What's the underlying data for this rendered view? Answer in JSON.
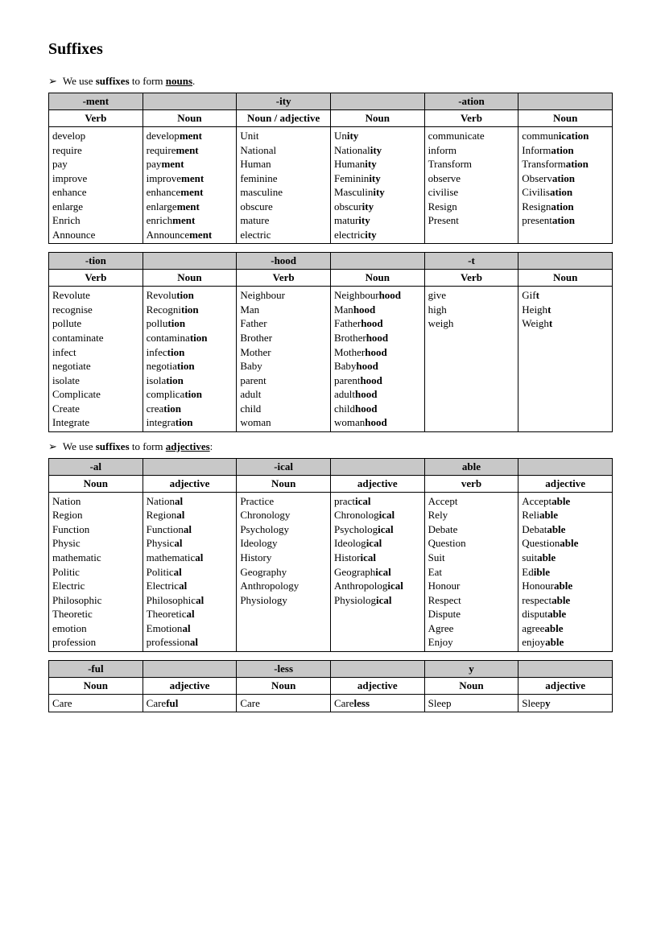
{
  "title": "Suffixes",
  "intro1_pre": "We use ",
  "intro1_b1": "suffixes",
  "intro1_mid": " to form ",
  "intro1_bu": "nouns",
  "intro1_post": ".",
  "intro2_pre": "We use ",
  "intro2_b1": "suffixes",
  "intro2_mid": " to form ",
  "intro2_bu": "adjectives",
  "intro2_post": ":",
  "table1": {
    "suffixes": [
      "-ment",
      "",
      "-ity",
      "",
      "-ation",
      ""
    ],
    "headers": [
      "Verb",
      "Noun",
      "Noun / adjective",
      "Noun",
      "Verb",
      "Noun"
    ],
    "cols": [
      [
        "develop",
        "require",
        "pay",
        "improve",
        "enhance",
        "enlarge",
        "Enrich",
        "Announce"
      ],
      [
        [
          "develop",
          "ment"
        ],
        [
          "require",
          "ment"
        ],
        [
          "pay",
          "ment"
        ],
        [
          "improve",
          "ment"
        ],
        [
          "enhance",
          "ment"
        ],
        [
          "enlarge",
          "ment"
        ],
        [
          "enrich",
          "ment"
        ],
        [
          "Announce",
          "ment"
        ]
      ],
      [
        "Unit",
        "National",
        "Human",
        "feminine",
        "masculine",
        "obscure",
        "mature",
        "electric"
      ],
      [
        [
          "Un",
          "ity"
        ],
        [
          "National",
          "ity"
        ],
        [
          "Human",
          "ity"
        ],
        [
          "Feminin",
          "ity"
        ],
        [
          "Masculin",
          "ity"
        ],
        [
          "obscur",
          "ity"
        ],
        [
          "matur",
          "ity"
        ],
        [
          "electric",
          "ity"
        ]
      ],
      [
        "communicate",
        "inform",
        "Transform",
        "observe",
        "civilise",
        "Resign",
        "Present"
      ],
      [
        [
          "commun",
          "ication"
        ],
        [
          "Inform",
          "ation"
        ],
        [
          "Transform",
          "ation"
        ],
        [
          "Observ",
          "ation"
        ],
        [
          "Civilis",
          "ation"
        ],
        [
          "Resign",
          "ation"
        ],
        [
          "present",
          "ation"
        ]
      ]
    ]
  },
  "table2": {
    "suffixes": [
      "-tion",
      "",
      "-hood",
      "",
      "-t",
      ""
    ],
    "headers": [
      "Verb",
      "Noun",
      "Verb",
      "Noun",
      "Verb",
      "Noun"
    ],
    "cols": [
      [
        "Revolute",
        "recognise",
        "pollute",
        "contaminate",
        "infect",
        "negotiate",
        "isolate",
        "Complicate",
        "Create",
        "Integrate"
      ],
      [
        [
          "Revolu",
          "tion"
        ],
        [
          "Recogni",
          "tion"
        ],
        [
          "pollu",
          "tion"
        ],
        [
          "contamina",
          "tion"
        ],
        [
          "infec",
          "tion"
        ],
        [
          "negotia",
          "tion"
        ],
        [
          "isola",
          "tion"
        ],
        [
          "complica",
          "tion"
        ],
        [
          "crea",
          "tion"
        ],
        [
          "integra",
          "tion"
        ]
      ],
      [
        "Neighbour",
        "Man",
        "Father",
        "Brother",
        "Mother",
        "Baby",
        "parent",
        "adult",
        "child",
        "woman"
      ],
      [
        [
          "Neighbour",
          "hood"
        ],
        [
          "Man",
          "hood"
        ],
        [
          "Father",
          "hood"
        ],
        [
          "Brother",
          "hood"
        ],
        [
          "Mother",
          "hood"
        ],
        [
          "Baby",
          "hood"
        ],
        [
          "parent",
          "hood"
        ],
        [
          "adult",
          "hood"
        ],
        [
          "child",
          "hood"
        ],
        [
          "woman",
          "hood"
        ]
      ],
      [
        "give",
        "high",
        "weigh"
      ],
      [
        [
          "Gif",
          "t"
        ],
        [
          "Heigh",
          "t"
        ],
        [
          "Weigh",
          "t"
        ]
      ]
    ]
  },
  "table3": {
    "suffixes": [
      "-al",
      "",
      "-ical",
      "",
      "able",
      ""
    ],
    "headers": [
      "Noun",
      "adjective",
      "Noun",
      "adjective",
      "verb",
      "adjective"
    ],
    "cols": [
      [
        "Nation",
        "Region",
        "Function",
        "Physic",
        "mathematic",
        "Politic",
        "Electric",
        "Philosophic",
        "Theoretic",
        "emotion",
        "profession"
      ],
      [
        [
          "Nation",
          "al"
        ],
        [
          "Region",
          "al"
        ],
        [
          "Function",
          "al"
        ],
        [
          "Physic",
          "al"
        ],
        [
          "mathematic",
          "al"
        ],
        [
          "Politic",
          "al"
        ],
        [
          "Electric",
          "al"
        ],
        [
          "Philosophic",
          "al"
        ],
        [
          "Theoretic",
          "al"
        ],
        [
          "Emotion",
          "al"
        ],
        [
          "profession",
          "al"
        ]
      ],
      [
        "Practice",
        "Chronology",
        "Psychology",
        "Ideology",
        "History",
        "Geography",
        "Anthropology",
        "Physiology"
      ],
      [
        [
          " pract",
          "ical"
        ],
        [
          "Chronolog",
          "ical"
        ],
        [
          "Psycholog",
          "ical"
        ],
        [
          "Ideolog",
          "ical"
        ],
        [
          "Histor",
          "ical"
        ],
        [
          "Geograph",
          "ical"
        ],
        [
          "Anthropolog",
          "ical"
        ],
        [
          "Physiolog",
          "ical"
        ]
      ],
      [
        "Accept",
        "Rely",
        "Debate",
        "Question",
        "Suit",
        "Eat",
        "Honour",
        "Respect",
        "Dispute",
        "Agree",
        "Enjoy"
      ],
      [
        [
          "Accept",
          "able"
        ],
        [
          "Reli",
          "able"
        ],
        [
          "Debat",
          "able"
        ],
        [
          "Question",
          "able"
        ],
        [
          "suit",
          "able"
        ],
        [
          "Ed",
          "ible"
        ],
        [
          "Honour",
          "able"
        ],
        [
          "respect",
          "able"
        ],
        [
          "disput",
          "able"
        ],
        [
          "agree",
          "able"
        ],
        [
          "enjoy",
          "able"
        ]
      ]
    ]
  },
  "table4": {
    "suffixes": [
      "-ful",
      "",
      "-less",
      "",
      "y",
      ""
    ],
    "headers": [
      "Noun",
      "adjective",
      "Noun",
      "adjective",
      "Noun",
      "adjective"
    ],
    "cols": [
      [
        "Care"
      ],
      [
        [
          "Care",
          "ful"
        ]
      ],
      [
        "Care"
      ],
      [
        [
          "Care",
          "less"
        ]
      ],
      [
        "Sleep"
      ],
      [
        [
          "Sleep",
          "y"
        ]
      ]
    ]
  }
}
